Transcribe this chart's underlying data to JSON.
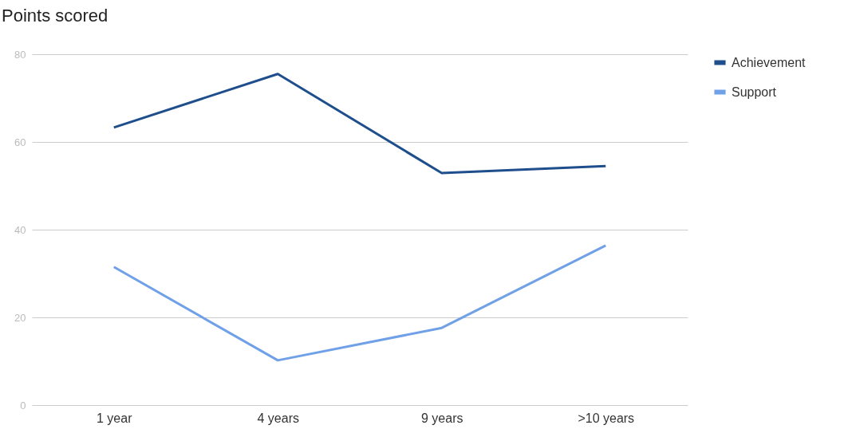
{
  "chart_data": {
    "type": "line",
    "title": "Points scored",
    "categories": [
      "1 year",
      "4 years",
      "9 years",
      ">10 years"
    ],
    "series": [
      {
        "name": "Achievement",
        "color": "#1f4e8c",
        "values": [
          63.3,
          75.5,
          52.9,
          54.5
        ]
      },
      {
        "name": "Support",
        "color": "#6fa0e8",
        "values": [
          31.5,
          10.2,
          17.6,
          36.4
        ]
      }
    ],
    "ylim": [
      0,
      80
    ],
    "yticks": [
      0,
      20,
      40,
      60,
      80
    ],
    "grid": "y",
    "legend": "top right",
    "marker": "none",
    "line_style": "solid"
  }
}
